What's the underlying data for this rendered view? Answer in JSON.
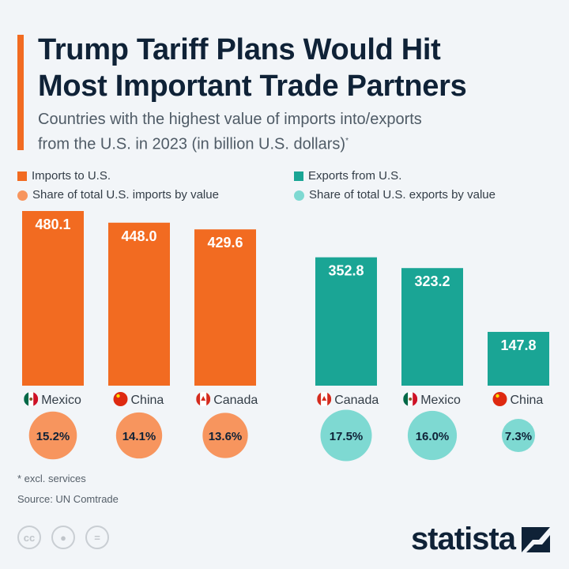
{
  "header": {
    "title_line1": "Trump Tariff Plans Would Hit",
    "title_line2": "Most Important Trade Partners",
    "subtitle_line1": "Countries with the highest value of imports into/exports",
    "subtitle_line2": "from the U.S. in 2023 (in billion U.S. dollars)",
    "subtitle_mark": "*"
  },
  "legend": {
    "imports": "Imports to U.S.",
    "imports_share": "Share of total U.S. imports by value",
    "exports": "Exports from U.S.",
    "exports_share": "Share of total U.S. exports by value"
  },
  "colors": {
    "imports": "#f26b21",
    "imports_share": "#f7955e",
    "exports": "#1aa595",
    "exports_share": "#7ed9d2"
  },
  "chart_data": [
    {
      "type": "bar",
      "title": "Imports to U.S.",
      "categories": [
        "Mexico",
        "China",
        "Canada"
      ],
      "values": [
        480.1,
        448.0,
        429.6
      ],
      "value_labels": [
        "480.1",
        "448.0",
        "429.6"
      ],
      "share_values": [
        15.2,
        14.1,
        13.6
      ],
      "share_labels": [
        "15.2%",
        "14.1%",
        "13.6%"
      ],
      "flags": [
        "mexico-flag",
        "china-flag",
        "canada-flag"
      ]
    },
    {
      "type": "bar",
      "title": "Exports from U.S.",
      "categories": [
        "Canada",
        "Mexico",
        "China"
      ],
      "values": [
        352.8,
        323.2,
        147.8
      ],
      "value_labels": [
        "352.8",
        "323.2",
        "147.8"
      ],
      "share_values": [
        17.5,
        16.0,
        7.3
      ],
      "share_labels": [
        "17.5%",
        "16.0%",
        "7.3%"
      ],
      "flags": [
        "canada-flag",
        "mexico-flag",
        "china-flag"
      ]
    }
  ],
  "footer": {
    "note": "* excl. services",
    "source": "Source: UN Comtrade",
    "license_icons": [
      "cc",
      "by",
      "nd"
    ],
    "logo": "statista"
  }
}
